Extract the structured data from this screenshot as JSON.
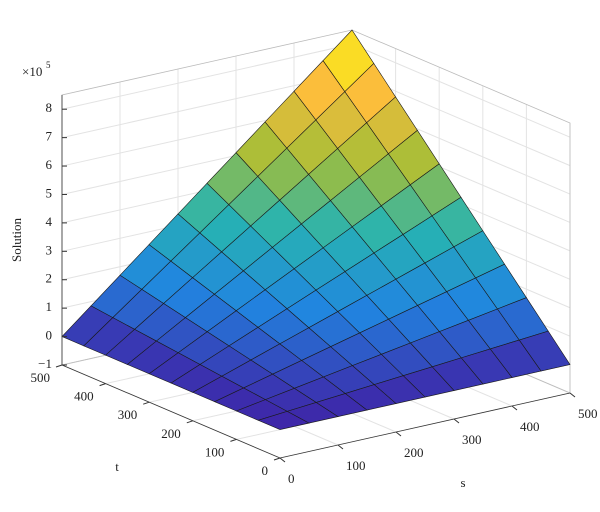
{
  "chart_data": {
    "type": "surface",
    "zlabel": "Solution",
    "xlabel": "s",
    "ylabel": "t",
    "multiplier": "×10",
    "multiplier_exponent": "5",
    "x": [
      0,
      50,
      100,
      150,
      200,
      250,
      300,
      350,
      400,
      450,
      500
    ],
    "y": [
      0,
      50,
      100,
      150,
      200,
      250,
      300,
      350,
      400,
      450,
      500
    ],
    "z": [
      [
        0,
        0,
        0,
        0,
        0,
        0,
        0,
        0,
        0,
        0,
        0
      ],
      [
        0,
        0.085,
        0.17,
        0.255,
        0.34,
        0.425,
        0.51,
        0.595,
        0.68,
        0.765,
        0.85
      ],
      [
        0,
        0.17,
        0.34,
        0.51,
        0.68,
        0.85,
        1.02,
        1.19,
        1.36,
        1.53,
        1.7
      ],
      [
        0,
        0.255,
        0.51,
        0.765,
        1.02,
        1.275,
        1.53,
        1.785,
        2.04,
        2.295,
        2.55
      ],
      [
        0,
        0.34,
        0.68,
        1.02,
        1.36,
        1.7,
        2.04,
        2.38,
        2.72,
        3.06,
        3.4
      ],
      [
        0,
        0.425,
        0.85,
        1.275,
        1.7,
        2.125,
        2.55,
        2.975,
        3.4,
        3.825,
        4.25
      ],
      [
        0,
        0.51,
        1.02,
        1.53,
        2.04,
        2.55,
        3.06,
        3.57,
        4.08,
        4.59,
        5.1
      ],
      [
        0,
        0.595,
        1.19,
        1.785,
        2.38,
        2.975,
        3.57,
        4.165,
        4.76,
        5.355,
        5.95
      ],
      [
        0,
        0.68,
        1.36,
        2.04,
        2.72,
        3.4,
        4.08,
        4.76,
        5.44,
        6.12,
        6.8
      ],
      [
        0,
        0.765,
        1.53,
        2.295,
        3.06,
        3.825,
        4.59,
        5.355,
        6.12,
        6.885,
        7.65
      ],
      [
        0,
        0.85,
        1.7,
        2.55,
        3.4,
        4.25,
        5.1,
        5.95,
        6.8,
        7.65,
        8.5
      ]
    ],
    "xlim": [
      0,
      500
    ],
    "ylim": [
      0,
      500
    ],
    "zlim": [
      -1,
      8.5
    ],
    "xticks": [
      0,
      100,
      200,
      300,
      400,
      500
    ],
    "yticks": [
      0,
      100,
      200,
      300,
      400,
      500
    ],
    "zticks": [
      {
        "value": -1,
        "label": "−1"
      },
      0,
      1,
      2,
      3,
      4,
      5,
      6,
      7,
      8
    ],
    "grid": true,
    "colormap": [
      "#3e26a8",
      "#2185e0",
      "#27b3b2",
      "#a5be37",
      "#fbbc3d",
      "#f9fb0e"
    ]
  }
}
